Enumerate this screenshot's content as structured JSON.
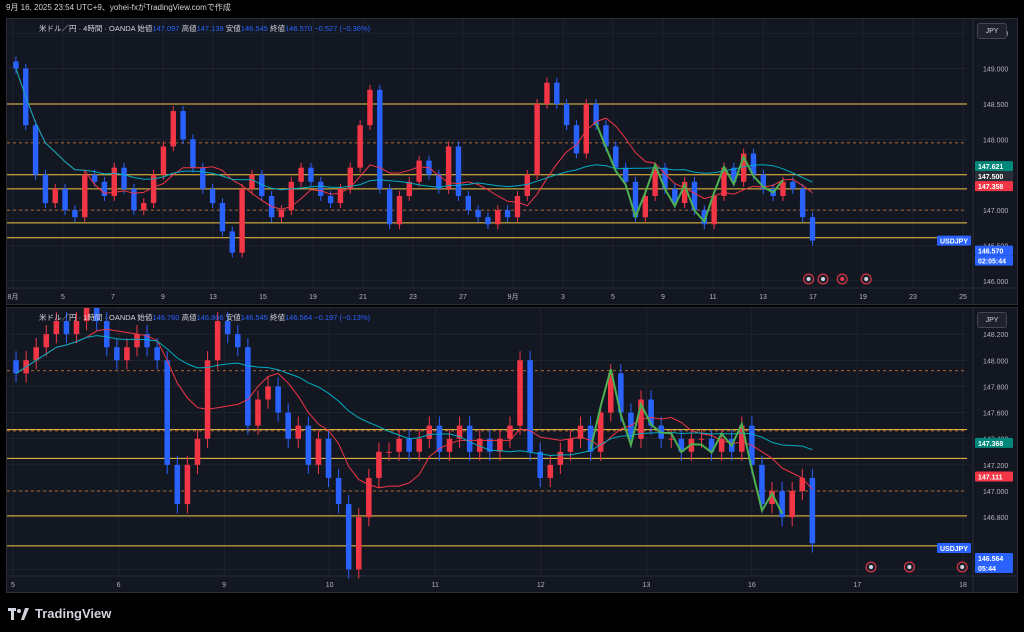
{
  "header": {
    "text": "9月 16, 2025 23:54 UTC+9、yohei-fxがTradingView.comで作成"
  },
  "footer": {
    "brand": "TradingView"
  },
  "currency_button": "JPY",
  "chart_data": [
    {
      "type": "candlestick",
      "legend": {
        "symbol": "米ドル／円 · 4時間 · OANDA",
        "open_label": "始値",
        "open": "147.097",
        "high_label": "高値",
        "high": "147.139",
        "low_label": "安値",
        "low": "146.545",
        "close_label": "終値",
        "close": "146.570",
        "change": "−0.527 (−0.36%)"
      },
      "ylim": [
        145.9,
        149.7
      ],
      "yticks": [
        "149.500",
        "149.000",
        "148.500",
        "148.000",
        "147.000",
        "146.500",
        "146.000"
      ],
      "xticks": [
        "8月",
        "5",
        "7",
        "9",
        "13",
        "15",
        "19",
        "21",
        "23",
        "27",
        "9月",
        "3",
        "5",
        "9",
        "11",
        "13",
        "17",
        "19",
        "23",
        "25"
      ],
      "horizontal_lines": [
        148.5,
        147.5,
        147.3,
        146.82,
        146.61
      ],
      "dashed_lines": [
        147.95,
        147.0
      ],
      "price_labels": [
        {
          "text": "147.621",
          "value": 147.621,
          "color": "#00897b"
        },
        {
          "text": "147.500",
          "value": 147.5,
          "color": "#2a2e39"
        },
        {
          "text": "147.358",
          "value": 147.358,
          "color": "#f23645"
        },
        {
          "text": "USDJPY",
          "value": 146.57,
          "color": "#2962ff"
        },
        {
          "text": "146.570",
          "value": 146.57,
          "color": "#2962ff"
        },
        {
          "text": "02:05:44",
          "value": 146.47,
          "color": "#2962ff"
        }
      ],
      "candles_close": [
        149.0,
        148.2,
        147.5,
        147.1,
        147.3,
        147.0,
        146.9,
        147.5,
        147.4,
        147.2,
        147.6,
        147.3,
        147.0,
        147.1,
        147.5,
        147.9,
        148.4,
        148.0,
        147.6,
        147.3,
        147.1,
        146.7,
        146.4,
        147.3,
        147.5,
        147.2,
        146.9,
        147.0,
        147.4,
        147.6,
        147.4,
        147.2,
        147.1,
        147.3,
        147.6,
        148.2,
        148.7,
        147.3,
        146.8,
        147.2,
        147.4,
        147.7,
        147.5,
        147.3,
        147.9,
        147.2,
        147.0,
        146.9,
        146.8,
        147.0,
        146.9,
        147.2,
        147.5,
        148.5,
        148.8,
        148.5,
        148.2,
        147.8,
        148.5,
        148.2,
        147.9,
        147.6,
        147.4,
        146.9,
        147.2,
        147.6,
        147.3,
        147.1,
        147.4,
        147.0,
        146.8,
        147.2,
        147.6,
        147.4,
        147.8,
        147.5,
        147.3,
        147.2,
        147.4,
        147.3,
        146.9,
        146.57
      ],
      "series": [
        {
          "name": "",
          "color": "#f23645"
        },
        {
          "name": "",
          "color": "#00acc1"
        },
        {
          "name": "",
          "color": "#4caf50"
        }
      ]
    },
    {
      "type": "candlestick",
      "legend": {
        "symbol": "米ドル／円 · 1時間 · OANDA",
        "open_label": "始値",
        "open": "146.760",
        "high_label": "高値",
        "high": "146.806",
        "low_label": "安値",
        "low": "146.545",
        "close_label": "終値",
        "close": "146.564",
        "change": "−0.197 (−0.13%)"
      },
      "ylim": [
        146.35,
        148.4
      ],
      "yticks": [
        "148.200",
        "148.000",
        "147.800",
        "147.600",
        "147.400",
        "147.200",
        "147.000",
        "146.800",
        "146.400"
      ],
      "xticks": [
        "5",
        "6",
        "9",
        "10",
        "11",
        "12",
        "13",
        "16",
        "17",
        "18"
      ],
      "horizontal_lines": [
        147.47,
        147.25,
        146.81,
        146.58
      ],
      "dashed_lines": [
        147.92,
        147.46,
        147.0
      ],
      "price_labels": [
        {
          "text": "147.368",
          "value": 147.368,
          "color": "#00897b"
        },
        {
          "text": "147.111",
          "value": 147.111,
          "color": "#f23645"
        },
        {
          "text": "USDJPY",
          "value": 146.564,
          "color": "#2962ff"
        },
        {
          "text": "146.564",
          "value": 146.564,
          "color": "#2962ff"
        },
        {
          "text": "05:44",
          "value": 146.48,
          "color": "#2962ff"
        }
      ],
      "candles_close": [
        147.9,
        148.0,
        148.1,
        148.2,
        148.3,
        148.2,
        148.3,
        148.4,
        148.3,
        148.1,
        148.0,
        148.1,
        148.2,
        148.1,
        148.0,
        147.2,
        146.9,
        147.2,
        147.4,
        148.0,
        148.3,
        148.2,
        148.1,
        147.5,
        147.7,
        147.8,
        147.6,
        147.4,
        147.5,
        147.2,
        147.4,
        147.1,
        146.9,
        146.4,
        146.8,
        147.1,
        147.3,
        147.3,
        147.4,
        147.3,
        147.4,
        147.5,
        147.3,
        147.4,
        147.5,
        147.3,
        147.4,
        147.3,
        147.4,
        147.5,
        148.0,
        147.3,
        147.1,
        147.2,
        147.3,
        147.4,
        147.5,
        147.3,
        147.6,
        147.9,
        147.6,
        147.4,
        147.7,
        147.5,
        147.4,
        147.4,
        147.3,
        147.4,
        147.4,
        147.3,
        147.4,
        147.3,
        147.5,
        147.2,
        146.9,
        147.0,
        146.8,
        147.0,
        147.1,
        146.6
      ],
      "series": [
        {
          "name": "",
          "color": "#f23645"
        },
        {
          "name": "",
          "color": "#00acc1"
        },
        {
          "name": "",
          "color": "#4caf50"
        }
      ]
    }
  ],
  "colors": {
    "up": "#f23645",
    "down": "#2962ff",
    "background": "#131722",
    "grid": "#2a2e39",
    "level": "#f5c542",
    "dashed": "#e0803a"
  },
  "icons": [
    "earnings-marker-icon",
    "flag-us-icon",
    "flag-jp-icon",
    "lightning-icon"
  ]
}
